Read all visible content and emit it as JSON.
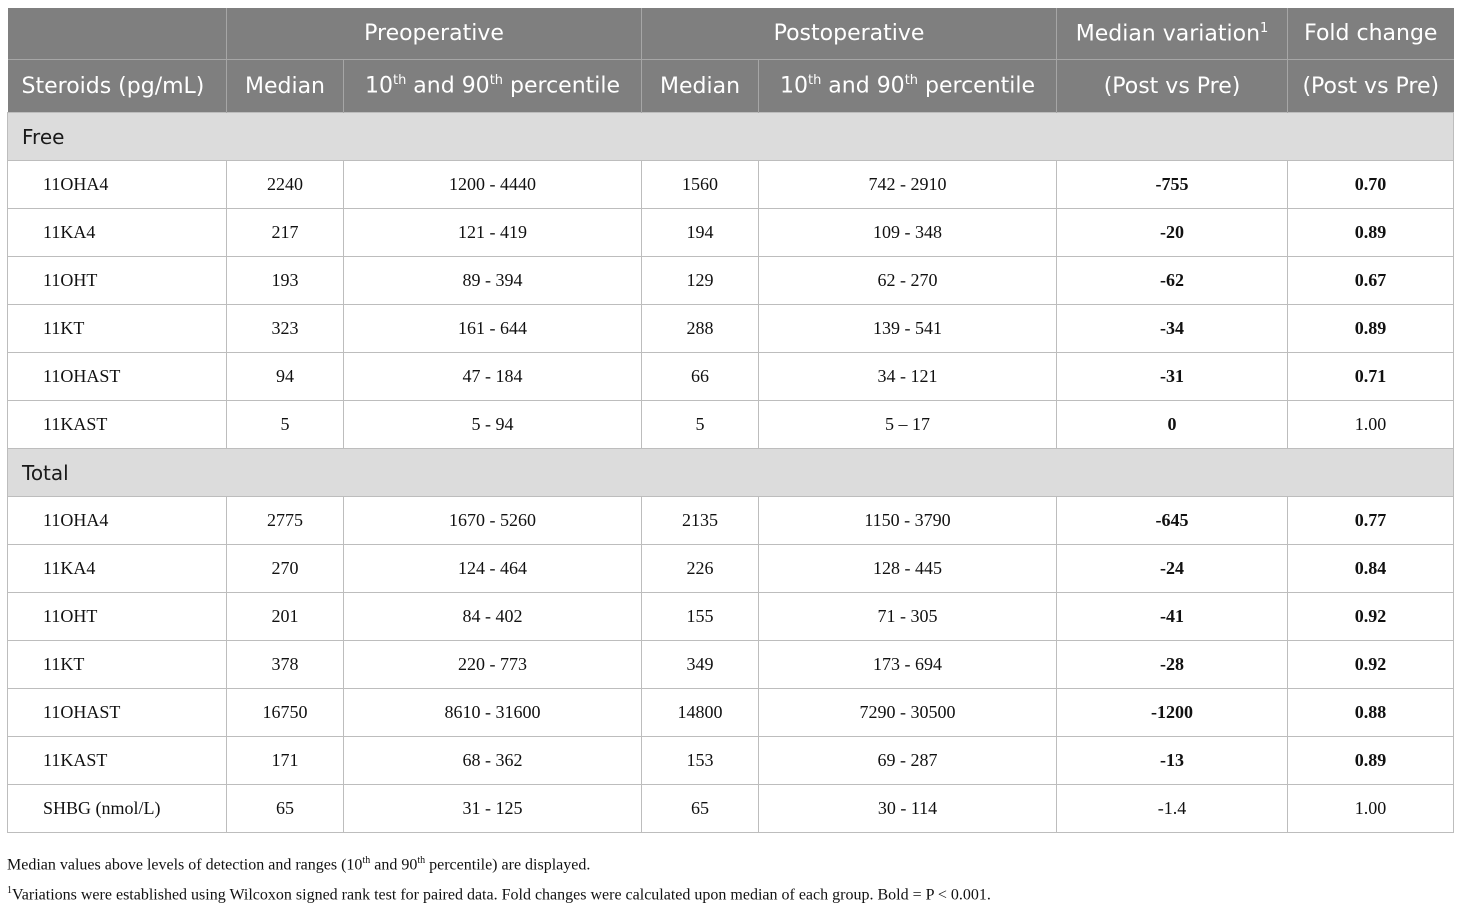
{
  "header": {
    "group_preop": "Preoperative",
    "group_postop": "Postoperative",
    "median_variation": "Median variation",
    "median_variation_sup": "1",
    "fold_change": "Fold change",
    "col_steroids": "Steroids (pg/mL)",
    "col_median": "Median",
    "pct_10": "10",
    "pct_th": "th",
    "pct_and": " and 90",
    "pct_suffix": " percentile",
    "post_vs_pre": "(Post vs Pre)"
  },
  "sections": [
    {
      "label": "Free",
      "rows": [
        {
          "name": "11OHA4",
          "pre_median": "2240",
          "pre_range": "1200 - 4440",
          "post_median": "1560",
          "post_range": "742 - 2910",
          "variation": "-755",
          "fold": "0.70",
          "var_bold": true,
          "fold_bold": true
        },
        {
          "name": "11KA4",
          "pre_median": "217",
          "pre_range": "121 - 419",
          "post_median": "194",
          "post_range": "109 - 348",
          "variation": "-20",
          "fold": "0.89",
          "var_bold": true,
          "fold_bold": true
        },
        {
          "name": "11OHT",
          "pre_median": "193",
          "pre_range": "89 - 394",
          "post_median": "129",
          "post_range": "62 - 270",
          "variation": "-62",
          "fold": "0.67",
          "var_bold": true,
          "fold_bold": true
        },
        {
          "name": "11KT",
          "pre_median": "323",
          "pre_range": "161 - 644",
          "post_median": "288",
          "post_range": "139 - 541",
          "variation": "-34",
          "fold": "0.89",
          "var_bold": true,
          "fold_bold": true
        },
        {
          "name": "11OHAST",
          "pre_median": "94",
          "pre_range": "47 - 184",
          "post_median": "66",
          "post_range": "34 - 121",
          "variation": "-31",
          "fold": "0.71",
          "var_bold": true,
          "fold_bold": true
        },
        {
          "name": "11KAST",
          "pre_median": "5",
          "pre_range": "5 - 94",
          "post_median": "5",
          "post_range": "5 – 17",
          "variation": "0",
          "fold": "1.00",
          "var_bold": true,
          "fold_bold": false
        }
      ]
    },
    {
      "label": "Total",
      "rows": [
        {
          "name": "11OHA4",
          "pre_median": "2775",
          "pre_range": "1670 - 5260",
          "post_median": "2135",
          "post_range": "1150 - 3790",
          "variation": "-645",
          "fold": "0.77",
          "var_bold": true,
          "fold_bold": true
        },
        {
          "name": "11KA4",
          "pre_median": "270",
          "pre_range": "124 - 464",
          "post_median": "226",
          "post_range": "128 - 445",
          "variation": "-24",
          "fold": "0.84",
          "var_bold": true,
          "fold_bold": true
        },
        {
          "name": "11OHT",
          "pre_median": "201",
          "pre_range": "84 - 402",
          "post_median": "155",
          "post_range": "71 - 305",
          "variation": "-41",
          "fold": "0.92",
          "var_bold": true,
          "fold_bold": true
        },
        {
          "name": "11KT",
          "pre_median": "378",
          "pre_range": "220 - 773",
          "post_median": "349",
          "post_range": "173 - 694",
          "variation": "-28",
          "fold": "0.92",
          "var_bold": true,
          "fold_bold": true
        },
        {
          "name": "11OHAST",
          "pre_median": "16750",
          "pre_range": "8610 - 31600",
          "post_median": "14800",
          "post_range": "7290 - 30500",
          "variation": "-1200",
          "fold": "0.88",
          "var_bold": true,
          "fold_bold": true
        },
        {
          "name": "11KAST",
          "pre_median": "171",
          "pre_range": "68 - 362",
          "post_median": "153",
          "post_range": "69 - 287",
          "variation": "-13",
          "fold": "0.89",
          "var_bold": true,
          "fold_bold": true
        },
        {
          "name": "SHBG (nmol/L)",
          "pre_median": "65",
          "pre_range": "31 - 125",
          "post_median": "65",
          "post_range": "30 - 114",
          "variation": "-1.4",
          "fold": "1.00",
          "var_bold": false,
          "fold_bold": false
        }
      ]
    }
  ],
  "footer": {
    "line1_a": "Median values above levels of detection and ranges (10",
    "line1_th": "th",
    "line1_b": " and 90",
    "line1_c": " percentile) are displayed.",
    "line2_sup": "1",
    "line2_text": "Variations were established using Wilcoxon signed rank test for paired data. Fold changes were calculated upon median of each group. Bold = P < 0.001."
  }
}
